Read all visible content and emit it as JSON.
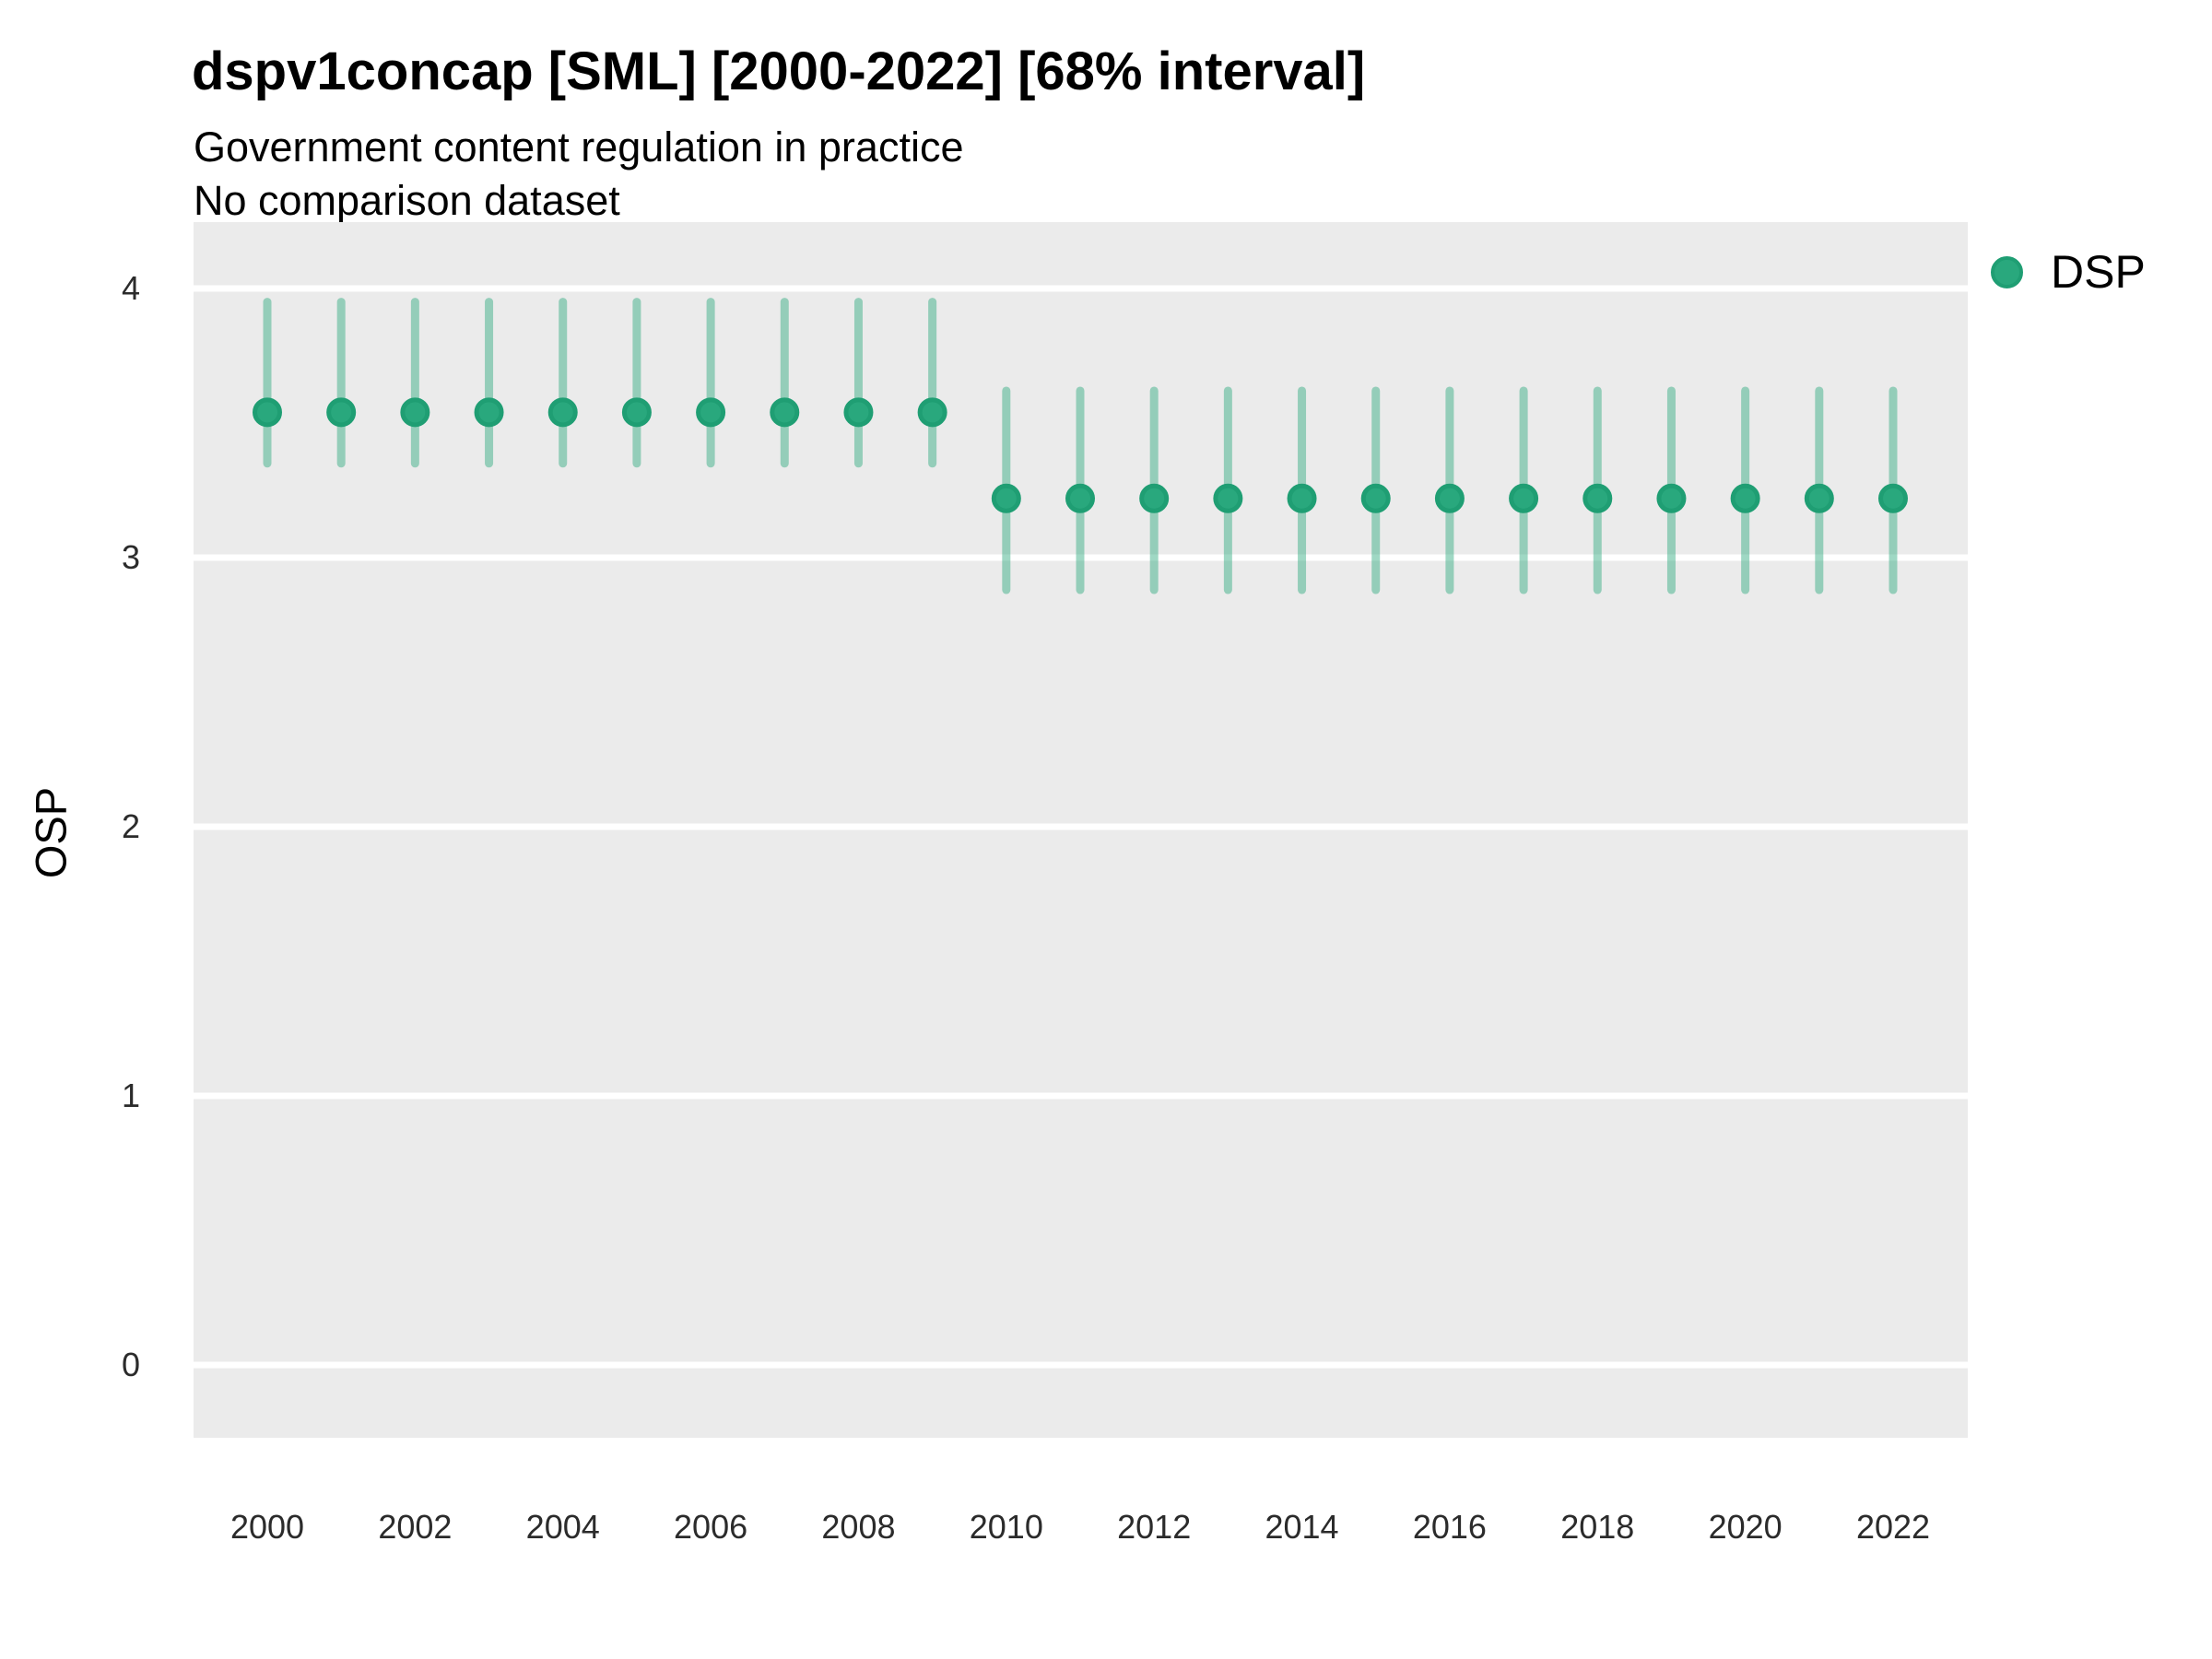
{
  "header": {
    "title": "dspv1concap [SML] [2000-2022] [68% interval]",
    "subtitle1": "Government content regulation in practice",
    "subtitle2": "No comparison dataset"
  },
  "legend": {
    "position": "right",
    "items": [
      {
        "label": "DSP",
        "marker": "circle",
        "marker_fill": "#29A87D",
        "marker_stroke": "#1F9E73"
      }
    ]
  },
  "axes": {
    "y": {
      "title": "OSP",
      "tick_labels": [
        "4",
        "3",
        "2",
        "1",
        "0"
      ],
      "tick_values": [
        4,
        3,
        2,
        1,
        0
      ]
    },
    "x": {
      "title": "",
      "tick_labels": [
        "2000",
        "2002",
        "2004",
        "2006",
        "2008",
        "2010",
        "2012",
        "2014",
        "2016",
        "2018",
        "2020",
        "2022"
      ],
      "tick_values": [
        2000,
        2002,
        2004,
        2006,
        2008,
        2010,
        2012,
        2014,
        2016,
        2018,
        2020,
        2022
      ]
    }
  },
  "colors": {
    "page_background": "#FFFFFF",
    "panel_background": "#EBEBEB",
    "gridline": "#FFFFFF",
    "point_fill": "#29A87D",
    "point_stroke": "#1F9E73",
    "interval_bar": "rgba(43,168,125,0.45)",
    "text": "#000000",
    "tick_text": "#2b2b2b"
  },
  "chart_data": {
    "type": "pointrange",
    "title": "dspv1concap [SML] [2000-2022] [68% interval]",
    "subtitle": [
      "Government content regulation in practice",
      "No comparison dataset"
    ],
    "interval_level": "68%",
    "xlabel": "",
    "ylabel": "OSP",
    "ylim": [
      0,
      4
    ],
    "xlim": [
      2000,
      2022
    ],
    "grid": "major-horizontal-only",
    "legend_position": "right-top",
    "series": [
      {
        "name": "DSP",
        "x": [
          2000,
          2001,
          2002,
          2003,
          2004,
          2005,
          2006,
          2007,
          2008,
          2009,
          2010,
          2011,
          2012,
          2013,
          2014,
          2015,
          2016,
          2017,
          2018,
          2019,
          2020,
          2021,
          2022
        ],
        "est": [
          3.54,
          3.54,
          3.54,
          3.54,
          3.54,
          3.54,
          3.54,
          3.54,
          3.54,
          3.54,
          3.22,
          3.22,
          3.22,
          3.22,
          3.22,
          3.22,
          3.22,
          3.22,
          3.22,
          3.22,
          3.22,
          3.22,
          3.22
        ],
        "lo": [
          3.35,
          3.35,
          3.35,
          3.35,
          3.35,
          3.35,
          3.35,
          3.35,
          3.35,
          3.35,
          2.88,
          2.88,
          2.88,
          2.88,
          2.88,
          2.88,
          2.88,
          2.88,
          2.88,
          2.88,
          2.88,
          2.88,
          2.88
        ],
        "hi": [
          3.95,
          3.95,
          3.95,
          3.95,
          3.95,
          3.95,
          3.95,
          3.95,
          3.95,
          3.95,
          3.62,
          3.62,
          3.62,
          3.62,
          3.62,
          3.62,
          3.62,
          3.62,
          3.62,
          3.62,
          3.62,
          3.62,
          3.62
        ]
      }
    ]
  }
}
